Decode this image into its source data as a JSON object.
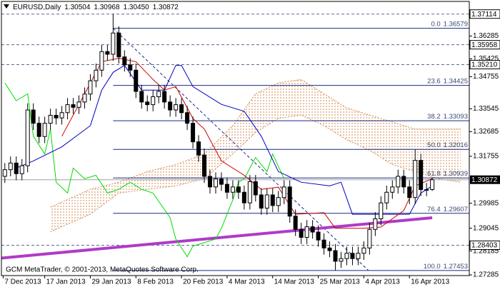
{
  "chart_data": {
    "type": "candlestick",
    "symbol": "EURUSD,Daily",
    "header_values": [
      1.30504,
      1.30968,
      {
        "value": 1.3045,
        "label": "1.30450"
      },
      1.30872
    ],
    "copyright": "GCM MetaTrader, © 2001-2013, MetaQuotes Software Corp.",
    "xlim": [
      -0.6,
      81.5
    ],
    "ylim": [
      1.2726,
      1.3759
    ],
    "yticks": [
      1.36285,
      1.35425,
      1.34755,
      1.33545,
      1.32685,
      1.31755,
      1.29985,
      1.29045,
      1.28185,
      1.27285
    ],
    "x_labels": {
      "x": [
        -0.3,
        7,
        15,
        23,
        31,
        39,
        47,
        55,
        63,
        71
      ],
      "labels": [
        "7 Dec 2013",
        "17 Jan 2013",
        "29 Jan 2013",
        "8 Feb 2013",
        "20 Feb 2013",
        "4 Mar 2013",
        "14 Mar 2013",
        "25 Mar 2013",
        "4 Apr 2013",
        "16 Apr 2013"
      ]
    },
    "up_color": "#ffffff",
    "down_color": "#000000",
    "open": [
      1.31,
      1.3125,
      1.315,
      1.311,
      1.314,
      1.335,
      1.33,
      1.325,
      1.33,
      1.333,
      1.332,
      1.334,
      1.337,
      1.336,
      1.338,
      1.341,
      1.346,
      1.35,
      1.357,
      1.356,
      1.364,
      1.355,
      1.352,
      1.35,
      1.342,
      1.338,
      1.337,
      1.34,
      1.342,
      1.338,
      1.335,
      1.337,
      1.334,
      1.33,
      1.323,
      1.318,
      1.31,
      1.306,
      1.309,
      1.307,
      1.304,
      1.306,
      1.304,
      1.3,
      1.308,
      1.303,
      1.298,
      1.303,
      1.299,
      1.302,
      1.306,
      1.295,
      1.29,
      1.287,
      1.291,
      1.289,
      1.286,
      1.283,
      1.282,
      1.278,
      1.279,
      1.281,
      1.279,
      1.281,
      1.283,
      1.29,
      1.294,
      1.3,
      1.304,
      1.306,
      1.31,
      1.306,
      1.302,
      1.316,
      1.305,
      1.30504
    ],
    "high": [
      1.315,
      1.3175,
      1.3175,
      1.3165,
      1.3375,
      1.3375,
      1.3325,
      1.3325,
      1.3355,
      1.3355,
      1.3365,
      1.3395,
      1.3395,
      1.3405,
      1.3435,
      1.3485,
      1.3525,
      1.3595,
      1.3595,
      1.37114,
      1.3665,
      1.3575,
      1.3545,
      1.3525,
      1.3445,
      1.3405,
      1.3425,
      1.3445,
      1.3445,
      1.3405,
      1.3395,
      1.3395,
      1.3365,
      1.3325,
      1.3255,
      1.3205,
      1.3125,
      1.3115,
      1.3115,
      1.3095,
      1.3085,
      1.3085,
      1.3065,
      1.3105,
      1.3105,
      1.3055,
      1.3055,
      1.3055,
      1.3045,
      1.3085,
      1.3085,
      1.2975,
      1.2925,
      1.2935,
      1.2935,
      1.2915,
      1.2885,
      1.2855,
      1.2845,
      1.2815,
      1.2835,
      1.2835,
      1.2835,
      1.2855,
      1.2925,
      1.2965,
      1.3025,
      1.3065,
      1.3085,
      1.3125,
      1.3125,
      1.3085,
      1.32,
      1.3185,
      1.3075,
      1.30968
    ],
    "low": [
      1.3075,
      1.31,
      1.3085,
      1.3085,
      1.3115,
      1.3275,
      1.3225,
      1.3225,
      1.3275,
      1.3295,
      1.3295,
      1.3315,
      1.3335,
      1.3335,
      1.3355,
      1.3385,
      1.3435,
      1.3475,
      1.3535,
      1.3535,
      1.3525,
      1.3495,
      1.3475,
      1.3395,
      1.3355,
      1.3345,
      1.3345,
      1.3375,
      1.3355,
      1.3325,
      1.3325,
      1.3315,
      1.3275,
      1.3205,
      1.3155,
      1.3075,
      1.3035,
      1.3035,
      1.3045,
      1.3015,
      1.3015,
      1.3015,
      1.2975,
      1.2975,
      1.3005,
      1.2955,
      1.2955,
      1.2965,
      1.2965,
      1.2995,
      1.2925,
      1.2875,
      1.2845,
      1.2845,
      1.2865,
      1.2835,
      1.2805,
      1.2795,
      1.27453,
      1.2755,
      1.2765,
      1.2765,
      1.2765,
      1.2785,
      1.2805,
      1.2875,
      1.2915,
      1.2975,
      1.3015,
      1.3035,
      1.3035,
      1.2995,
      1.2995,
      1.3025,
      1.3025,
      1.3045
    ],
    "close": [
      1.3125,
      1.315,
      1.311,
      1.314,
      1.335,
      1.33,
      1.325,
      1.33,
      1.333,
      1.332,
      1.334,
      1.337,
      1.336,
      1.338,
      1.341,
      1.346,
      1.35,
      1.357,
      1.356,
      1.364,
      1.355,
      1.352,
      1.35,
      1.342,
      1.338,
      1.337,
      1.34,
      1.342,
      1.338,
      1.335,
      1.337,
      1.334,
      1.33,
      1.323,
      1.318,
      1.31,
      1.306,
      1.309,
      1.307,
      1.304,
      1.306,
      1.304,
      1.3,
      1.308,
      1.303,
      1.298,
      1.303,
      1.299,
      1.302,
      1.306,
      1.295,
      1.29,
      1.287,
      1.291,
      1.289,
      1.286,
      1.283,
      1.282,
      1.278,
      1.279,
      1.281,
      1.279,
      1.281,
      1.283,
      1.29,
      1.294,
      1.3,
      1.304,
      1.306,
      1.31,
      1.306,
      1.302,
      1.316,
      1.305,
      1.305,
      1.30872
    ],
    "levels": [
      1.37114,
      1.35958,
      {
        "value": 1.3521,
        "label": "1.35210"
      },
      1.28403
    ],
    "level_color": "#5a6a8a",
    "current_color": "#a0a0a0",
    "cloud": {
      "color": "#d08a50",
      "x": [
        8,
        15,
        20,
        25,
        30,
        35,
        40,
        44,
        48,
        52,
        56,
        60,
        64,
        68,
        72,
        76,
        80
      ],
      "upper": [
        1.2984,
        1.3051,
        1.3078,
        1.3118,
        1.3144,
        1.3184,
        1.3291,
        1.3411,
        1.3452,
        1.3465,
        1.3411,
        1.3358,
        1.3331,
        1.3305,
        1.3278,
        1.3278,
        1.3278
      ],
      "lower": [
        1.2891,
        1.2957,
        1.3037,
        1.3051,
        1.3064,
        1.3091,
        1.3184,
        1.3265,
        1.3318,
        1.3331,
        1.3291,
        1.3238,
        1.3198,
        1.3144,
        1.3118,
        1.3091,
        1.3078
      ]
    },
    "lines": [
      {
        "color": "#b03ac8",
        "width": 4,
        "x": [
          -0.6,
          75
        ],
        "values": [
          1.2792,
          1.2944
        ]
      },
      {
        "color": "#00dd00",
        "width": 1,
        "x": [
          0,
          2,
          4,
          5,
          7,
          8,
          9,
          11,
          12,
          14,
          16,
          18,
          20,
          22,
          24,
          26,
          29,
          30,
          32,
          33,
          35,
          37,
          38,
          40,
          41,
          42,
          44,
          46,
          47,
          49
        ],
        "values": [
          1.3452,
          1.3385,
          1.3411,
          1.3251,
          1.3184,
          1.3278,
          1.3078,
          1.3037,
          1.3131,
          1.3091,
          1.3104,
          1.3037,
          1.3051,
          1.3078,
          1.3051,
          1.3037,
          1.2944,
          1.2864,
          1.2797,
          1.2837,
          1.285,
          1.2864,
          1.2904,
          1.3011,
          1.3078,
          1.3091,
          1.3171,
          1.3118,
          1.3184,
          1.3091
        ]
      },
      {
        "color": "#0000c0",
        "width": 1,
        "x": [
          2,
          5,
          10,
          15,
          17,
          19,
          21,
          24,
          28,
          30,
          31,
          33,
          38,
          42,
          45,
          48,
          52,
          57,
          59,
          61,
          67,
          71,
          73,
          75
        ],
        "values": [
          1.3131,
          1.3158,
          1.3211,
          1.3291,
          1.3425,
          1.3492,
          1.3518,
          1.3425,
          1.3425,
          1.3518,
          1.3518,
          1.3438,
          1.3371,
          1.3345,
          1.3251,
          1.3118,
          1.3078,
          1.3064,
          1.3078,
          1.2957,
          1.2957,
          1.2957,
          1.3037,
          1.3064
        ]
      },
      {
        "color": "#cc0000",
        "width": 1,
        "x": [
          10,
          14,
          17,
          20,
          23,
          26,
          28,
          30,
          33,
          35,
          38,
          42,
          45,
          48,
          51,
          56,
          58,
          63,
          66,
          70,
          72,
          75
        ],
        "values": [
          1.3251,
          1.3411,
          1.3532,
          1.3545,
          1.3532,
          1.3465,
          1.3425,
          1.3438,
          1.3318,
          1.3278,
          1.3158,
          1.3104,
          1.3051,
          1.3059,
          1.2957,
          1.2963,
          1.2904,
          1.2904,
          1.2909,
          1.2971,
          1.3064,
          1.3091
        ]
      }
    ],
    "fib": {
      "color": "#1a2a80",
      "x": [
        19,
        63.8
      ],
      "levels": [
        {
          "ratio": "0.0",
          "price": 1.36579
        },
        {
          "ratio": "23.6",
          "price": 1.34425
        },
        {
          "ratio": "38.2",
          "price": 1.33093
        },
        {
          "ratio": "50.0",
          "price": 1.32016
        },
        {
          "ratio": "61.8",
          "price": 1.30939
        },
        {
          "ratio": "76.4",
          "price": 1.29607
        },
        {
          "ratio": "100.0",
          "price": 1.27453
        }
      ]
    }
  }
}
